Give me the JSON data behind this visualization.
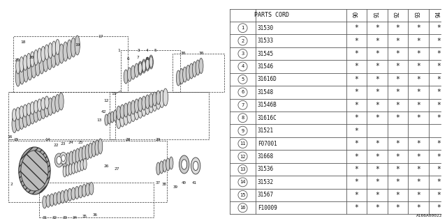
{
  "diagram_label": "A166A00022",
  "bg_color": "#ffffff",
  "line_color": "#333333",
  "text_color": "#111111",
  "table": {
    "rows": [
      {
        "num": 1,
        "part": "31530",
        "marks": [
          1,
          1,
          1,
          1,
          1
        ]
      },
      {
        "num": 2,
        "part": "31533",
        "marks": [
          1,
          1,
          1,
          1,
          1
        ]
      },
      {
        "num": 3,
        "part": "31545",
        "marks": [
          1,
          1,
          1,
          1,
          1
        ]
      },
      {
        "num": 4,
        "part": "31546",
        "marks": [
          1,
          1,
          1,
          1,
          1
        ]
      },
      {
        "num": 5,
        "part": "31616D",
        "marks": [
          1,
          1,
          1,
          1,
          1
        ]
      },
      {
        "num": 6,
        "part": "31548",
        "marks": [
          1,
          1,
          1,
          1,
          1
        ]
      },
      {
        "num": 7,
        "part": "31546B",
        "marks": [
          1,
          1,
          1,
          1,
          1
        ]
      },
      {
        "num": 8,
        "part": "31616C",
        "marks": [
          1,
          1,
          1,
          1,
          1
        ]
      },
      {
        "num": 9,
        "part": "31521",
        "marks": [
          1,
          0,
          0,
          0,
          0
        ]
      },
      {
        "num": 11,
        "part": "F07001",
        "marks": [
          1,
          1,
          1,
          1,
          1
        ]
      },
      {
        "num": 12,
        "part": "31668",
        "marks": [
          1,
          1,
          1,
          1,
          1
        ]
      },
      {
        "num": 13,
        "part": "31536",
        "marks": [
          1,
          1,
          1,
          1,
          1
        ]
      },
      {
        "num": 14,
        "part": "31532",
        "marks": [
          1,
          1,
          1,
          1,
          1
        ]
      },
      {
        "num": 15,
        "part": "31567",
        "marks": [
          1,
          1,
          1,
          1,
          1
        ]
      },
      {
        "num": 16,
        "part": "F10009",
        "marks": [
          1,
          1,
          1,
          1,
          1
        ]
      }
    ],
    "years": [
      "90",
      "91",
      "92",
      "93",
      "94"
    ]
  }
}
